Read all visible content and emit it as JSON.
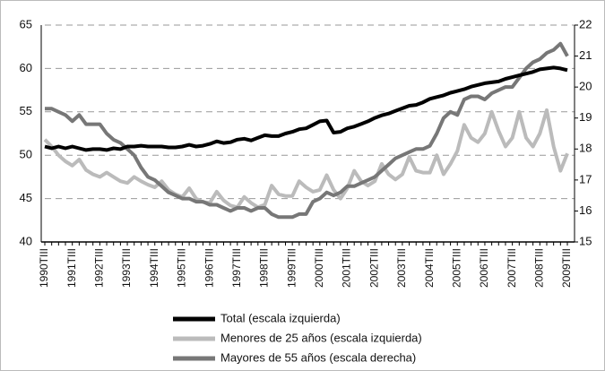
{
  "chart_data": {
    "type": "line",
    "x": [
      "1990TIII",
      null,
      null,
      null,
      "1991TIII",
      null,
      null,
      null,
      "1992TIII",
      null,
      null,
      null,
      "1993TIII",
      null,
      null,
      null,
      "1994TIII",
      null,
      null,
      null,
      "1995TIII",
      null,
      null,
      null,
      "1996TIII",
      null,
      null,
      null,
      "1997TIII",
      null,
      null,
      null,
      "1998TIII",
      null,
      null,
      null,
      "1999TIII",
      null,
      null,
      null,
      "2000TIII",
      null,
      null,
      null,
      "2001TIII",
      null,
      null,
      null,
      "2002TIII",
      null,
      null,
      null,
      "2003TIII",
      null,
      null,
      null,
      "2004TIII",
      null,
      null,
      null,
      "2005TIII",
      null,
      null,
      null,
      "2006TIII",
      null,
      null,
      null,
      "2007TIII",
      null,
      null,
      null,
      "2008TIII",
      null,
      null,
      null,
      "2009TIII"
    ],
    "ylim": [
      40,
      65
    ],
    "yticks": [
      40,
      45,
      50,
      55,
      60,
      65
    ],
    "y2lim": [
      15,
      22
    ],
    "y2ticks": [
      15,
      16,
      17,
      18,
      19,
      20,
      21,
      22
    ],
    "grid": true,
    "series": [
      {
        "name": "Total (escala izquierda)",
        "color": "#000000",
        "values": [
          51.0,
          50.8,
          51.0,
          50.8,
          51.0,
          50.8,
          50.6,
          50.7,
          50.7,
          50.6,
          50.8,
          50.7,
          51.0,
          51.0,
          51.1,
          51.0,
          51.0,
          51.0,
          50.9,
          50.9,
          51.0,
          51.2,
          51.0,
          51.1,
          51.3,
          51.6,
          51.4,
          51.5,
          51.8,
          51.9,
          51.7,
          52.0,
          52.3,
          52.2,
          52.2,
          52.5,
          52.7,
          53.0,
          53.1,
          53.5,
          53.9,
          54.0,
          52.6,
          52.7,
          53.1,
          53.3,
          53.6,
          53.9,
          54.3,
          54.6,
          54.8,
          55.1,
          55.4,
          55.7,
          55.8,
          56.1,
          56.5,
          56.7,
          56.9,
          57.2,
          57.4,
          57.6,
          57.9,
          58.1,
          58.3,
          58.4,
          58.5,
          58.8,
          59.0,
          59.2,
          59.4,
          59.6,
          59.9,
          60.0,
          60.1,
          60.0,
          59.8
        ]
      },
      {
        "name": "Menores de 25 años (escala izquierda)",
        "color": "#bbbbbb",
        "values": [
          51.8,
          51.0,
          50.0,
          49.3,
          48.8,
          49.5,
          48.3,
          47.8,
          47.5,
          48.0,
          47.5,
          47.0,
          46.8,
          47.5,
          47.0,
          46.6,
          46.3,
          47.0,
          46.0,
          45.5,
          45.2,
          46.2,
          45.0,
          44.6,
          44.5,
          45.8,
          44.8,
          44.2,
          44.0,
          45.2,
          44.5,
          44.0,
          44.3,
          46.5,
          45.5,
          45.3,
          45.3,
          47.0,
          46.3,
          45.8,
          46.0,
          47.7,
          46.0,
          45.0,
          46.2,
          48.2,
          47.0,
          46.5,
          47.0,
          49.0,
          47.8,
          47.2,
          47.8,
          49.8,
          48.2,
          48.0,
          48.0,
          50.0,
          47.8,
          49.0,
          50.5,
          53.5,
          52.0,
          51.5,
          52.5,
          55.0,
          52.8,
          51.0,
          52.0,
          55.0,
          52.0,
          51.0,
          52.5,
          55.2,
          51.0,
          48.2,
          50.2
        ]
      },
      {
        "name": "Mayores de 55 años (escala derecha)",
        "color": "#777777",
        "axis": "y2",
        "values": [
          19.3,
          19.3,
          19.2,
          19.1,
          18.9,
          19.1,
          18.8,
          18.8,
          18.8,
          18.5,
          18.3,
          18.2,
          18.0,
          17.8,
          17.4,
          17.1,
          17.0,
          16.8,
          16.6,
          16.5,
          16.4,
          16.4,
          16.3,
          16.3,
          16.2,
          16.2,
          16.1,
          16.0,
          16.1,
          16.1,
          16.0,
          16.1,
          16.1,
          15.9,
          15.8,
          15.8,
          15.8,
          15.9,
          15.9,
          16.3,
          16.4,
          16.6,
          16.5,
          16.6,
          16.8,
          16.8,
          16.9,
          17.0,
          17.1,
          17.3,
          17.5,
          17.7,
          17.8,
          17.9,
          18.0,
          18.0,
          18.1,
          18.5,
          19.0,
          19.2,
          19.1,
          19.6,
          19.7,
          19.7,
          19.6,
          19.8,
          19.9,
          20.0,
          20.0,
          20.3,
          20.6,
          20.8,
          20.9,
          21.1,
          21.2,
          21.4,
          21.0
        ]
      }
    ]
  }
}
